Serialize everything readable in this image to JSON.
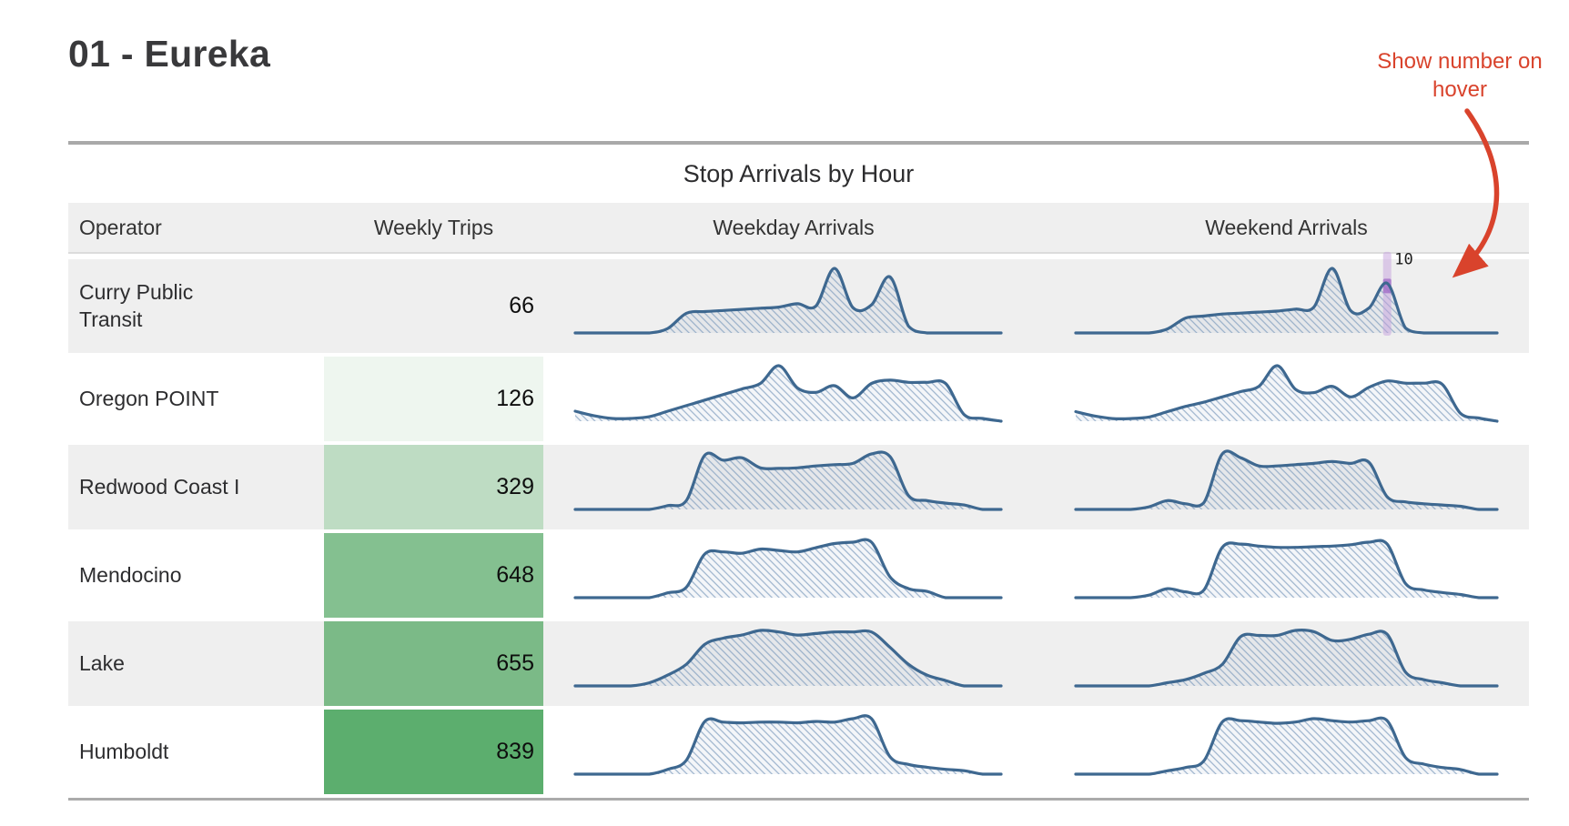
{
  "page": {
    "title": "01 - Eureka"
  },
  "annotation": {
    "text": "Show number on hover",
    "color": "#d9432c",
    "hover_value_label": "10"
  },
  "table": {
    "caption": "Stop Arrivals by Hour",
    "columns": [
      "Operator",
      "Weekly Trips",
      "Weekday Arrivals",
      "Weekend Arrivals"
    ],
    "rows": [
      {
        "operator": "Curry Public Transit",
        "weekly_trips": "66",
        "trips_bg": "transparent"
      },
      {
        "operator": "Oregon POINT",
        "weekly_trips": "126",
        "trips_bg": "#eef6ef"
      },
      {
        "operator": "Redwood Coast I",
        "weekly_trips": "329",
        "trips_bg": "#bedcc3"
      },
      {
        "operator": "Mendocino",
        "weekly_trips": "648",
        "trips_bg": "#84c090"
      },
      {
        "operator": "Lake",
        "weekly_trips": "655",
        "trips_bg": "#7bba87"
      },
      {
        "operator": "Humboldt",
        "weekly_trips": "839",
        "trips_bg": "#5cae6e"
      }
    ]
  },
  "chart_data": {
    "type": "area",
    "x_axis": "hour of day (0-23)",
    "note": "small-multiple sparklines, hatched area fill, each scaled to its own max",
    "series": [
      {
        "operator": "Curry Public Transit",
        "weekday": [
          0,
          0,
          0,
          0,
          0,
          0.8,
          3.5,
          3.8,
          4,
          4.2,
          4.4,
          4.6,
          5.2,
          4.8,
          11.5,
          4.5,
          5,
          10,
          1.2,
          0,
          0,
          0,
          0,
          0
        ],
        "weekend": [
          0,
          0,
          0,
          0,
          0,
          0.8,
          3,
          3.4,
          3.8,
          4,
          4.2,
          4.4,
          4.8,
          5.2,
          13,
          4.5,
          5,
          10,
          1,
          0,
          0,
          0,
          0,
          0
        ]
      },
      {
        "operator": "Oregon POINT",
        "weekday": [
          1.8,
          1,
          0.5,
          0.5,
          0.8,
          1.8,
          2.8,
          3.8,
          4.8,
          5.8,
          6.8,
          10,
          6,
          5.2,
          6.4,
          4.2,
          6.8,
          7.4,
          7,
          7,
          6.8,
          1.2,
          0.5,
          0
        ],
        "weekend": [
          1.8,
          1,
          0.5,
          0.5,
          0.8,
          1.8,
          2.8,
          3.6,
          4.6,
          5.6,
          6.6,
          10.5,
          6,
          5.4,
          6.6,
          4.6,
          6.4,
          7.6,
          7.2,
          7.2,
          7,
          1.5,
          0.6,
          0
        ]
      },
      {
        "operator": "Redwood Coast I",
        "weekday": [
          0,
          0,
          0,
          0,
          0,
          0.6,
          1.4,
          8.6,
          7.8,
          8.2,
          6.6,
          6.5,
          6.6,
          6.9,
          7.1,
          7.3,
          8.8,
          8.4,
          2.2,
          1.4,
          1,
          0.7,
          0,
          0
        ],
        "weekend": [
          0,
          0,
          0,
          0,
          0.4,
          1.4,
          0.9,
          1.1,
          8.8,
          8.2,
          6.9,
          6.9,
          7.1,
          7.3,
          7.6,
          7.3,
          7.5,
          2,
          1.2,
          0.9,
          0.7,
          0.5,
          0,
          0
        ]
      },
      {
        "operator": "Mendocino",
        "weekday": [
          0,
          0,
          0,
          0,
          0,
          0.7,
          1.5,
          6.3,
          6.6,
          6.4,
          7,
          6.8,
          6.6,
          7.2,
          7.8,
          8,
          8,
          3,
          1.3,
          0.9,
          0,
          0,
          0,
          0
        ],
        "weekend": [
          0,
          0,
          0,
          0,
          0.4,
          1.4,
          0.9,
          1.2,
          7.8,
          8.3,
          8,
          7.8,
          7.8,
          7.9,
          8,
          8.2,
          8.6,
          8.3,
          2.2,
          1.2,
          0.8,
          0.5,
          0,
          0
        ]
      },
      {
        "operator": "Lake",
        "weekday": [
          0,
          0,
          0,
          0,
          0.4,
          1.4,
          2.8,
          5.4,
          6.2,
          6.6,
          7.2,
          7,
          6.6,
          6.8,
          7,
          7,
          7,
          5,
          2.8,
          1.4,
          0.7,
          0,
          0,
          0
        ],
        "weekend": [
          0,
          0,
          0,
          0,
          0,
          0.5,
          1,
          2,
          3.4,
          7.8,
          8,
          8,
          8.8,
          8.6,
          7.2,
          7.4,
          8.2,
          8.2,
          2.2,
          1,
          0.5,
          0,
          0,
          0
        ]
      },
      {
        "operator": "Humboldt",
        "weekday": [
          0,
          0,
          0,
          0,
          0,
          0.7,
          2,
          7.6,
          7.5,
          7.4,
          7.5,
          7.5,
          7.4,
          7.6,
          7.5,
          8,
          8,
          2.5,
          1.4,
          1,
          0.7,
          0.5,
          0,
          0
        ],
        "weekend": [
          0,
          0,
          0,
          0,
          0,
          0.5,
          1,
          2,
          7.8,
          8,
          7.8,
          7.6,
          7.8,
          8.3,
          8,
          7.8,
          8,
          8,
          2.5,
          1.5,
          1,
          0.7,
          0,
          0
        ]
      }
    ],
    "hover_marker": {
      "operator": "Curry Public Transit",
      "series": "weekend",
      "hour": 17,
      "value": 10
    }
  },
  "style": {
    "line_color": "#3e6890",
    "hatch_color": "#7f9cbd",
    "marker_bar_color": "#c5a1de",
    "marker_dot_color": "#9d68c6",
    "row_stripe": "#efefef",
    "annotation_red": "#d9432c"
  }
}
